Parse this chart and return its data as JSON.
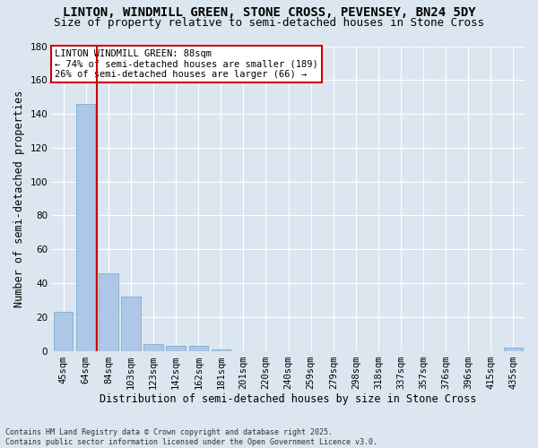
{
  "title": "LINTON, WINDMILL GREEN, STONE CROSS, PEVENSEY, BN24 5DY",
  "subtitle": "Size of property relative to semi-detached houses in Stone Cross",
  "xlabel": "Distribution of semi-detached houses by size in Stone Cross",
  "ylabel": "Number of semi-detached properties",
  "footnote": "Contains HM Land Registry data © Crown copyright and database right 2025.\nContains public sector information licensed under the Open Government Licence v3.0.",
  "bin_labels": [
    "45sqm",
    "64sqm",
    "84sqm",
    "103sqm",
    "123sqm",
    "142sqm",
    "162sqm",
    "181sqm",
    "201sqm",
    "220sqm",
    "240sqm",
    "259sqm",
    "279sqm",
    "298sqm",
    "318sqm",
    "337sqm",
    "357sqm",
    "376sqm",
    "396sqm",
    "415sqm",
    "435sqm"
  ],
  "bar_values": [
    23,
    146,
    46,
    32,
    4,
    3,
    3,
    1,
    0,
    0,
    0,
    0,
    0,
    0,
    0,
    0,
    0,
    0,
    0,
    0,
    2
  ],
  "bar_color": "#aec6e8",
  "bar_edge_color": "#7aaed0",
  "vline_color": "#cc0000",
  "annotation_title": "LINTON WINDMILL GREEN: 88sqm",
  "annotation_line1": "← 74% of semi-detached houses are smaller (189)",
  "annotation_line2": "26% of semi-detached houses are larger (66) →",
  "annotation_box_color": "#ffffff",
  "annotation_box_edge": "#cc0000",
  "ylim": [
    0,
    180
  ],
  "yticks": [
    0,
    20,
    40,
    60,
    80,
    100,
    120,
    140,
    160,
    180
  ],
  "bg_color": "#dce6f0",
  "plot_bg_color": "#dce6f0",
  "grid_color": "#ffffff",
  "title_fontsize": 10,
  "subtitle_fontsize": 9,
  "axis_fontsize": 8.5,
  "tick_fontsize": 7.5,
  "annot_fontsize": 7.5,
  "footnote_fontsize": 6
}
